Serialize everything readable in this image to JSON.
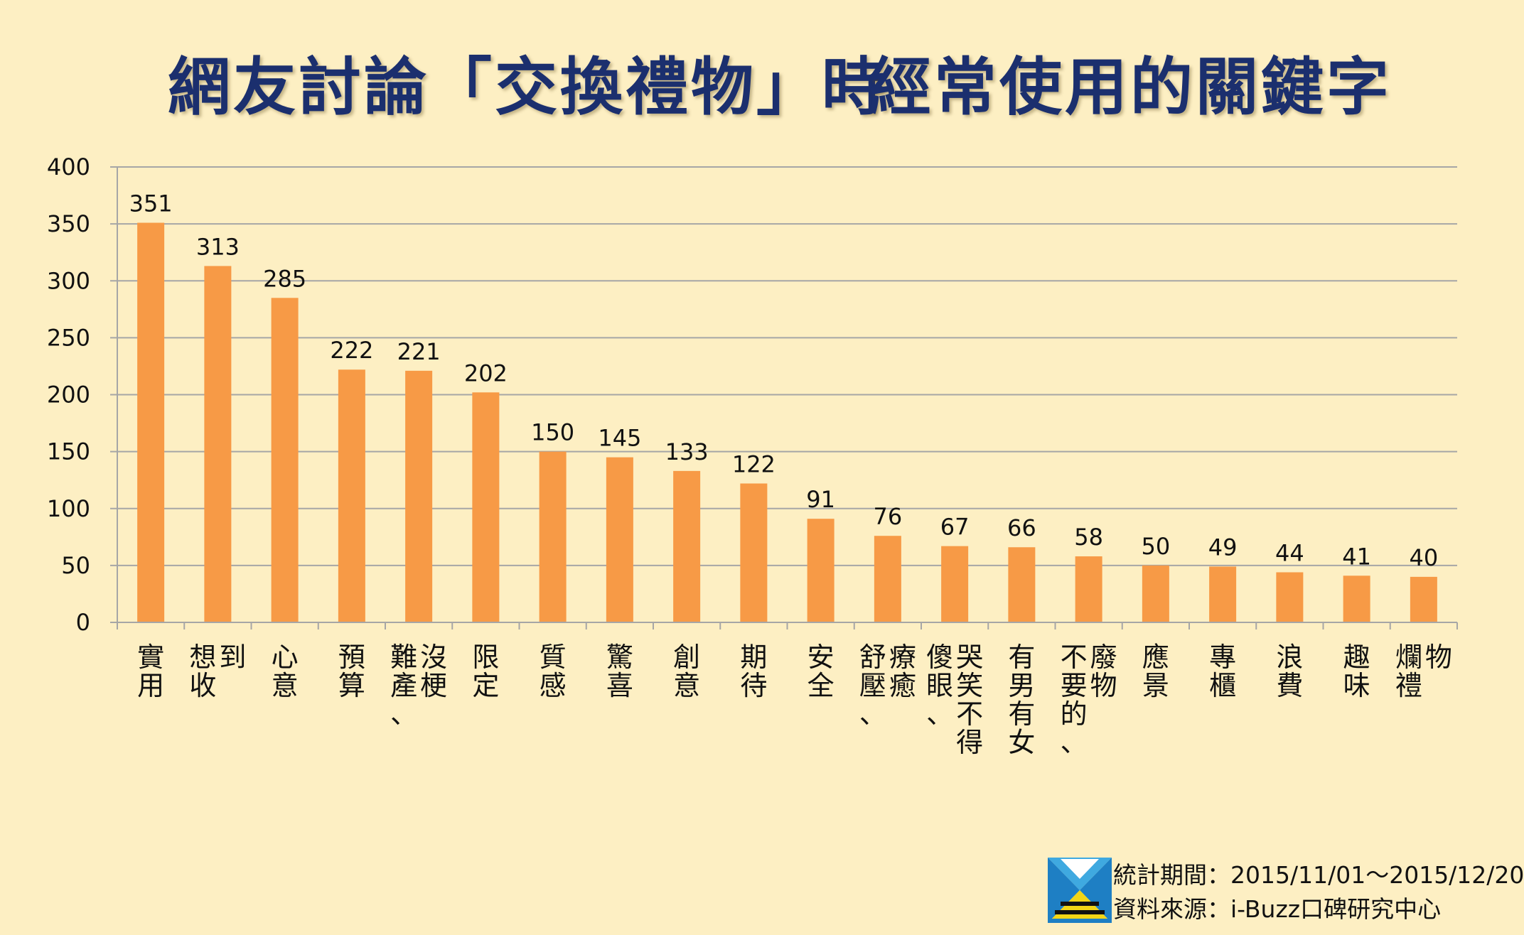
{
  "title_left": "網友討論「交換禮物」時",
  "title_right": "經常使用的關鍵字",
  "colors": {
    "bar": "#f79a46",
    "grid": "#a6a6a6",
    "background": "#fdefc3",
    "title": "#1b2f6e"
  },
  "chart_data": {
    "type": "bar",
    "title": "網友討論「交換禮物」時　經常使用的關鍵字",
    "categories": [
      "實用",
      "想收到",
      "心意",
      "預算",
      "難產、沒梗",
      "限定",
      "質感",
      "驚喜",
      "創意",
      "期待",
      "安全",
      "舒壓、療癒",
      "傻眼、哭笑不得",
      "有男有女",
      "不要的、廢物",
      "應景",
      "專櫃",
      "浪費",
      "趣味",
      "爛禮物"
    ],
    "category_lines": [
      [
        "實用"
      ],
      [
        "想收",
        "到"
      ],
      [
        "心意"
      ],
      [
        "預算"
      ],
      [
        "難產、",
        "沒梗"
      ],
      [
        "限定"
      ],
      [
        "質感"
      ],
      [
        "驚喜"
      ],
      [
        "創意"
      ],
      [
        "期待"
      ],
      [
        "安全"
      ],
      [
        "舒壓、",
        "療癒"
      ],
      [
        "傻眼、",
        "哭笑不得"
      ],
      [
        "有男有女"
      ],
      [
        "不要的、",
        "廢物"
      ],
      [
        "應景"
      ],
      [
        "專櫃"
      ],
      [
        "浪費"
      ],
      [
        "趣味"
      ],
      [
        "爛禮",
        "物"
      ]
    ],
    "values": [
      351,
      313,
      285,
      222,
      221,
      202,
      150,
      145,
      133,
      122,
      91,
      76,
      67,
      66,
      58,
      50,
      49,
      44,
      41,
      40
    ],
    "yticks": [
      0,
      50,
      100,
      150,
      200,
      250,
      300,
      350,
      400
    ],
    "ylim": [
      0,
      400
    ],
    "grid": true,
    "legend": "none"
  },
  "footer": {
    "period_line": "統計期間：2015/11/01～2015/12/20",
    "source_line": "資料來源：i-Buzz口碑研究中心"
  },
  "logo": {
    "icon": "i-buzz-logo-icon"
  }
}
